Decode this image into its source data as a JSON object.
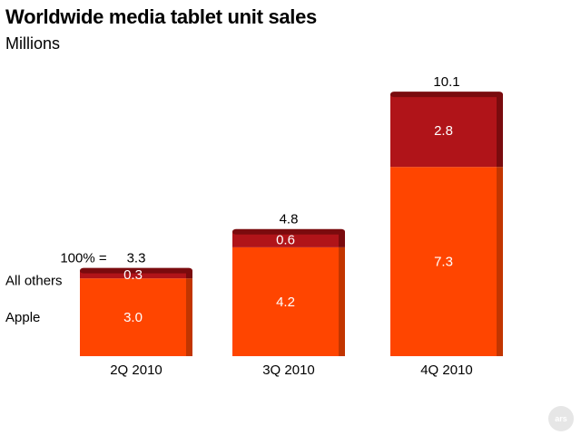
{
  "header": {
    "title": "Worldwide media tablet unit sales",
    "subtitle": "Millions"
  },
  "legend": {
    "total_prefix": "100% =",
    "series_labels": [
      "All others",
      "Apple"
    ]
  },
  "logo_text": "ars",
  "colors": {
    "apple": "#ff4500",
    "apple_side": "#c23500",
    "others": "#b01419",
    "others_side": "#7a0b0e",
    "text": "#000000",
    "inside_text": "#ffffff"
  },
  "chart_data": {
    "type": "bar",
    "stacked": true,
    "title": "Worldwide media tablet unit sales",
    "subtitle": "Millions",
    "categories": [
      "2Q 2010",
      "3Q 2010",
      "4Q 2010"
    ],
    "series": [
      {
        "name": "Apple",
        "values": [
          3.0,
          4.2,
          7.3
        ],
        "labels": [
          "3.0",
          "4.2",
          "7.3"
        ]
      },
      {
        "name": "All others",
        "values": [
          0.3,
          0.6,
          2.8
        ],
        "labels": [
          "0.3",
          "0.6",
          "2.8"
        ]
      }
    ],
    "totals": [
      3.3,
      4.8,
      10.1
    ],
    "total_labels": [
      "3.3",
      "4.8",
      "10.1"
    ]
  }
}
